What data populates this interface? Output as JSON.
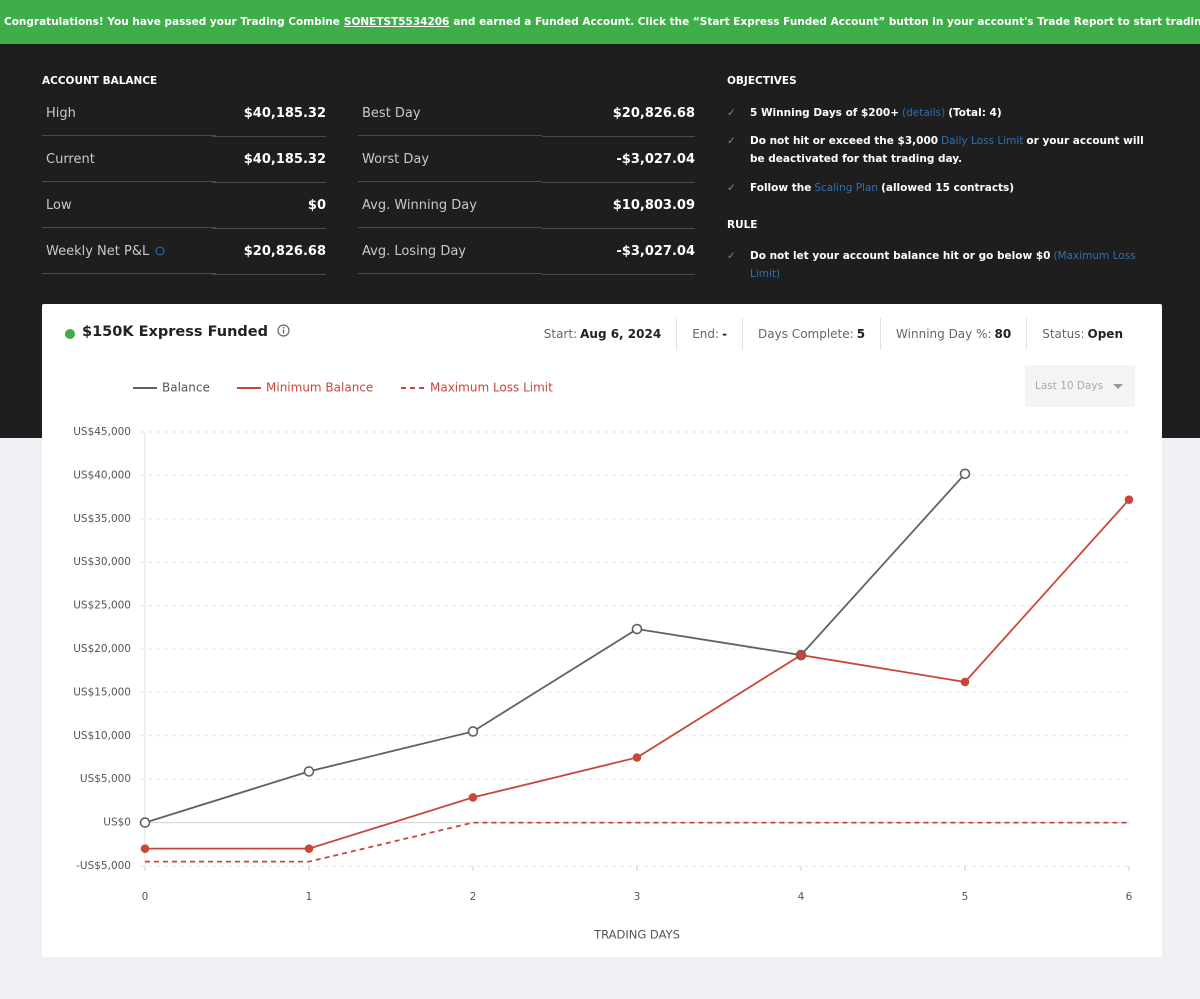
{
  "banner": {
    "before": "Congratulations! You have passed your Trading Combine",
    "account": "SONETST5534206",
    "after": "and earned a Funded Account. Click the “Start Express Funded Account” button in your account's Trade Report to start trading at the Funded Level."
  },
  "account_balance": {
    "title": "ACCOUNT BALANCE",
    "rows": [
      [
        "High",
        "$40,185.32",
        "Best Day",
        "$20,826.68"
      ],
      [
        "Current",
        "$40,185.32",
        "Worst Day",
        "-$3,027.04"
      ],
      [
        "Low",
        "$0",
        "Avg. Winning Day",
        "$10,803.09"
      ],
      [
        "Weekly Net P&L",
        "$20,826.68",
        "Avg. Losing Day",
        "-$3,027.04"
      ]
    ]
  },
  "objectives": {
    "title": "OBJECTIVES",
    "items": [
      {
        "text": "5 Winning Days of $200+",
        "link": "(details)",
        "after": "(Total: 4)"
      },
      {
        "text": "Do not hit or exceed the $3,000",
        "link": "Daily Loss Limit",
        "after": "or your account will be deactivated for that trading day."
      },
      {
        "text": "Follow the",
        "link": "Scaling Plan",
        "after": "(allowed 15 contracts)"
      }
    ]
  },
  "rule": {
    "title": "RULE",
    "items": [
      {
        "text": "Do not let your account balance hit or go below $0",
        "link": "(Maximum Loss Limit)"
      }
    ]
  },
  "card": {
    "title": "$150K Express Funded",
    "stats": [
      {
        "label": "Start:",
        "value": "Aug 6, 2024"
      },
      {
        "label": "End:",
        "value": "-"
      },
      {
        "label": "Days Complete:",
        "value": "5"
      },
      {
        "label": "Winning Day %:",
        "value": "80"
      },
      {
        "label": "Status:",
        "value": "Open"
      }
    ],
    "range_select": "Last 10 Days"
  },
  "chart_data": {
    "type": "line",
    "x_label": "TRADING DAYS",
    "x": [
      0,
      1,
      2,
      3,
      4,
      5,
      6
    ],
    "series": [
      {
        "name": "Balance",
        "color": "#616161",
        "line_style": "solid",
        "markers": "open",
        "values": [
          0,
          5900,
          10500,
          22300,
          19300,
          40185,
          null
        ]
      },
      {
        "name": "Minimum Balance",
        "color": "#c9473a",
        "line_style": "solid",
        "markers": "filled",
        "values": [
          -3000,
          -3000,
          2900,
          7500,
          19300,
          16200,
          37200
        ]
      },
      {
        "name": "Maximum Loss Limit",
        "color": "#c9473a",
        "line_style": "dashed",
        "markers": "none",
        "values": [
          -4500,
          -4500,
          0,
          0,
          0,
          0,
          0
        ]
      }
    ],
    "xlim": [
      0,
      6
    ],
    "xticks": [
      0,
      1,
      2,
      3,
      4,
      5,
      6
    ],
    "ylim": [
      -5000,
      45000
    ],
    "yticks": [
      {
        "value": -5000,
        "label": "-US$5,000"
      },
      {
        "value": 0,
        "label": "US$0"
      },
      {
        "value": 5000,
        "label": "US$5,000"
      },
      {
        "value": 10000,
        "label": "US$10,000"
      },
      {
        "value": 15000,
        "label": "US$15,000"
      },
      {
        "value": 20000,
        "label": "US$20,000"
      },
      {
        "value": 25000,
        "label": "US$25,000"
      },
      {
        "value": 30000,
        "label": "US$30,000"
      },
      {
        "value": 35000,
        "label": "US$35,000"
      },
      {
        "value": 40000,
        "label": "US$40,000"
      },
      {
        "value": 45000,
        "label": "US$45,000"
      }
    ],
    "grid": true
  }
}
